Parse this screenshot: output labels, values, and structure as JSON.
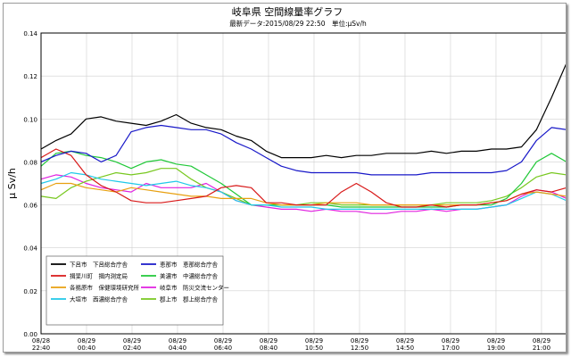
{
  "chart_data": {
    "type": "line",
    "title": "岐阜県 空間線量率グラフ",
    "subtitle": "最新データ:2015/08/29 22:50　単位:μSv/h",
    "ylabel": "μ Sv/h",
    "ylim": [
      0,
      0.14
    ],
    "yticks": [
      "0.14",
      "0.12",
      "0.10",
      "0.08",
      "0.06",
      "0.04",
      "0.02",
      "0.00"
    ],
    "x_tick_labels": [
      [
        "08/28",
        "22:40"
      ],
      [
        "08/29",
        "00:40"
      ],
      [
        "08/29",
        "02:40"
      ],
      [
        "08/29",
        "04:40"
      ],
      [
        "08/29",
        "06:40"
      ],
      [
        "08/29",
        "08:40"
      ],
      [
        "08/29",
        "10:50"
      ],
      [
        "08/29",
        "12:50"
      ],
      [
        "08/29",
        "14:50"
      ],
      [
        "08/29",
        "17:00"
      ],
      [
        "08/29",
        "19:00"
      ],
      [
        "08/29",
        "21:00"
      ]
    ],
    "grid": true,
    "legend_position": "bottom-left",
    "series": [
      {
        "name": "下呂市　下呂総合庁舎",
        "color": "#000000",
        "values": [
          0.086,
          0.09,
          0.093,
          0.1,
          0.101,
          0.099,
          0.098,
          0.097,
          0.099,
          0.102,
          0.098,
          0.096,
          0.095,
          0.092,
          0.09,
          0.085,
          0.082,
          0.082,
          0.082,
          0.083,
          0.082,
          0.083,
          0.083,
          0.084,
          0.084,
          0.084,
          0.085,
          0.084,
          0.085,
          0.085,
          0.086,
          0.086,
          0.087,
          0.095,
          0.11,
          0.126
        ]
      },
      {
        "name": "揖斐川町　揖内測定局",
        "color": "#d81818",
        "values": [
          0.082,
          0.086,
          0.083,
          0.074,
          0.069,
          0.066,
          0.062,
          0.061,
          0.061,
          0.062,
          0.063,
          0.064,
          0.068,
          0.069,
          0.068,
          0.061,
          0.061,
          0.06,
          0.06,
          0.06,
          0.066,
          0.07,
          0.066,
          0.061,
          0.059,
          0.059,
          0.06,
          0.059,
          0.06,
          0.06,
          0.061,
          0.062,
          0.065,
          0.067,
          0.066,
          0.068
        ]
      },
      {
        "name": "各務原市　保健環境研究所",
        "color": "#e8a010",
        "values": [
          0.067,
          0.07,
          0.07,
          0.068,
          0.067,
          0.066,
          0.068,
          0.067,
          0.066,
          0.065,
          0.064,
          0.064,
          0.063,
          0.063,
          0.063,
          0.061,
          0.06,
          0.06,
          0.06,
          0.061,
          0.061,
          0.061,
          0.06,
          0.06,
          0.06,
          0.06,
          0.06,
          0.06,
          0.06,
          0.06,
          0.061,
          0.062,
          0.065,
          0.066,
          0.065,
          0.064
        ]
      },
      {
        "name": "大垣市　西濃総合庁舎",
        "color": "#20c8e8",
        "values": [
          0.07,
          0.072,
          0.075,
          0.074,
          0.072,
          0.071,
          0.07,
          0.069,
          0.07,
          0.071,
          0.069,
          0.068,
          0.066,
          0.062,
          0.06,
          0.06,
          0.059,
          0.059,
          0.059,
          0.058,
          0.058,
          0.058,
          0.058,
          0.058,
          0.058,
          0.058,
          0.058,
          0.058,
          0.058,
          0.058,
          0.059,
          0.06,
          0.063,
          0.066,
          0.065,
          0.062
        ]
      },
      {
        "name": "恵那市　恵那総合庁舎",
        "color": "#1818c8",
        "values": [
          0.08,
          0.083,
          0.085,
          0.084,
          0.08,
          0.083,
          0.094,
          0.096,
          0.097,
          0.096,
          0.095,
          0.095,
          0.093,
          0.089,
          0.086,
          0.082,
          0.078,
          0.076,
          0.075,
          0.075,
          0.075,
          0.075,
          0.074,
          0.074,
          0.074,
          0.074,
          0.075,
          0.075,
          0.075,
          0.075,
          0.075,
          0.076,
          0.08,
          0.09,
          0.096,
          0.095
        ]
      },
      {
        "name": "美濃市　中濃総合庁舎",
        "color": "#20c838",
        "values": [
          0.078,
          0.084,
          0.085,
          0.083,
          0.082,
          0.08,
          0.077,
          0.08,
          0.081,
          0.079,
          0.078,
          0.074,
          0.07,
          0.065,
          0.06,
          0.06,
          0.06,
          0.06,
          0.06,
          0.06,
          0.059,
          0.059,
          0.059,
          0.059,
          0.059,
          0.059,
          0.059,
          0.059,
          0.06,
          0.06,
          0.06,
          0.063,
          0.07,
          0.08,
          0.084,
          0.08
        ]
      },
      {
        "name": "岐阜市　防災交流センター",
        "color": "#e020e0",
        "values": [
          0.072,
          0.074,
          0.073,
          0.07,
          0.068,
          0.067,
          0.066,
          0.07,
          0.068,
          0.068,
          0.068,
          0.07,
          0.066,
          0.062,
          0.06,
          0.059,
          0.058,
          0.058,
          0.057,
          0.058,
          0.057,
          0.057,
          0.056,
          0.056,
          0.057,
          0.057,
          0.058,
          0.057,
          0.058,
          0.058,
          0.059,
          0.06,
          0.064,
          0.067,
          0.066,
          0.063
        ]
      },
      {
        "name": "郡上市　郡上総合庁舎",
        "color": "#78c820",
        "values": [
          0.064,
          0.063,
          0.068,
          0.071,
          0.073,
          0.075,
          0.074,
          0.075,
          0.077,
          0.077,
          0.072,
          0.068,
          0.066,
          0.063,
          0.06,
          0.06,
          0.06,
          0.06,
          0.061,
          0.061,
          0.06,
          0.06,
          0.06,
          0.06,
          0.06,
          0.06,
          0.06,
          0.061,
          0.061,
          0.061,
          0.062,
          0.064,
          0.068,
          0.073,
          0.075,
          0.074
        ]
      }
    ]
  }
}
